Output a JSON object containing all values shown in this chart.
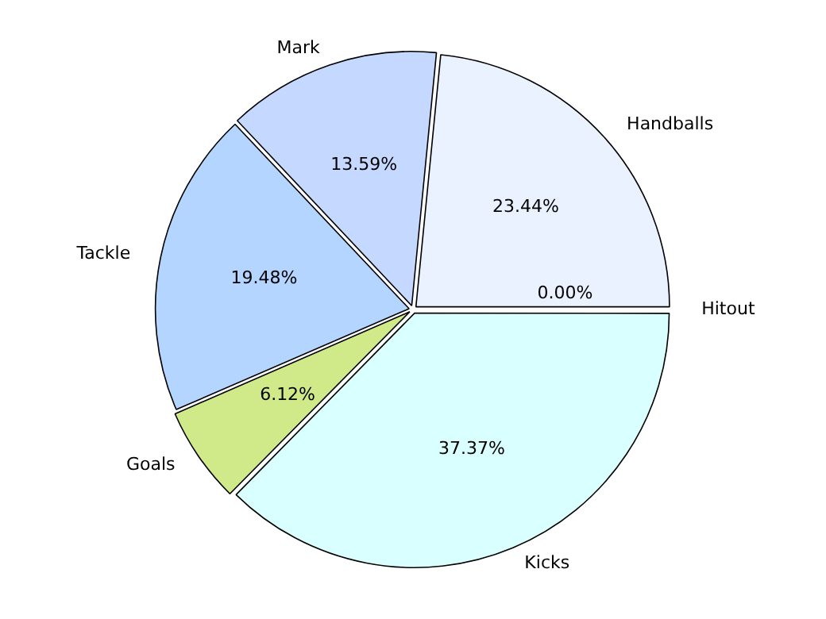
{
  "chart_data": {
    "type": "pie",
    "categories": [
      "Kicks",
      "Goals",
      "Tackle",
      "Mark",
      "Handballs",
      "Hitout"
    ],
    "values": [
      37.37,
      6.12,
      19.48,
      13.59,
      23.44,
      0.0
    ],
    "colors": [
      "#d9ffff",
      "#d0ea8a",
      "#b3d5ff",
      "#c5d8ff",
      "#eaf1ff",
      "#ffffff"
    ],
    "value_labels": [
      "37.37%",
      "6.12%",
      "19.48%",
      "13.59%",
      "23.44%",
      "0.00%"
    ],
    "legend": false
  }
}
